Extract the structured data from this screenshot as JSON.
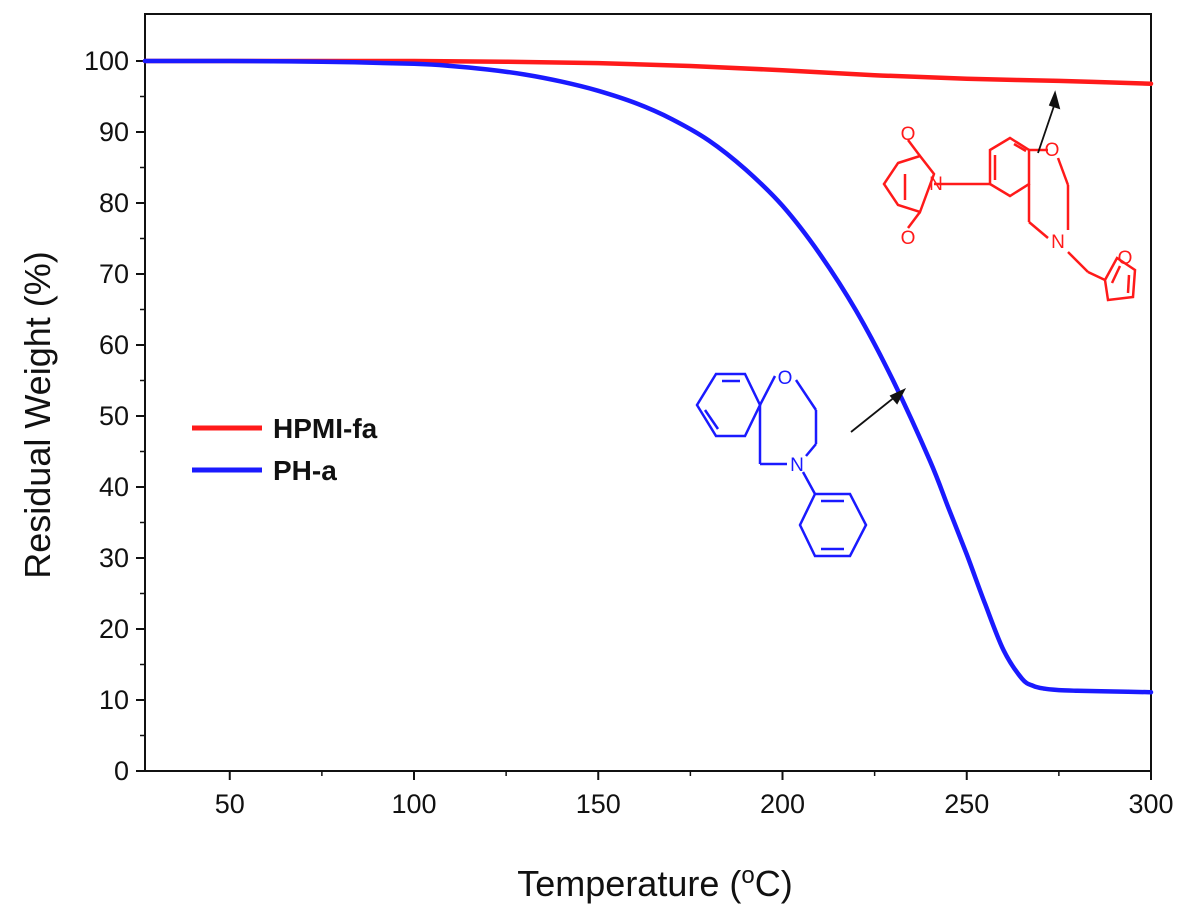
{
  "chart_data": {
    "type": "line",
    "xlabel": "Temperature (",
    "xlabel_sup": "o",
    "xlabel_tail": "C)",
    "ylabel": "Residual Weight (%)",
    "xlim": [
      27,
      300
    ],
    "ylim": [
      0,
      105
    ],
    "x_ticks": [
      50,
      100,
      150,
      200,
      250,
      300
    ],
    "x_minor_step": 25,
    "y_ticks": [
      0,
      10,
      20,
      30,
      40,
      50,
      60,
      70,
      80,
      90,
      100
    ],
    "y_minor_step": 5,
    "grid": false,
    "legend_position": "center-left",
    "series": [
      {
        "name": "HPMI-fa",
        "color": "#ff1a1a",
        "x": [
          27,
          50,
          75,
          100,
          125,
          150,
          175,
          200,
          225,
          250,
          275,
          300
        ],
        "y": [
          100,
          100,
          100,
          100,
          99.9,
          99.7,
          99.3,
          98.7,
          98.0,
          97.5,
          97.2,
          96.8
        ]
      },
      {
        "name": "PH-a",
        "color": "#1a1aff",
        "x": [
          27,
          50,
          75,
          100,
          110,
          120,
          130,
          140,
          150,
          160,
          170,
          180,
          190,
          200,
          210,
          220,
          230,
          240,
          245,
          250,
          255,
          260,
          265,
          268,
          271,
          275,
          280,
          290,
          300
        ],
        "y": [
          100,
          100,
          99.9,
          99.6,
          99.3,
          98.8,
          98.1,
          97.1,
          95.8,
          94.1,
          91.8,
          88.8,
          84.7,
          79.6,
          72.9,
          64.8,
          55.0,
          43.7,
          37.1,
          30.5,
          23.5,
          17.0,
          13.0,
          12.0,
          11.6,
          11.4,
          11.3,
          11.2,
          11.1
        ]
      }
    ],
    "annotations": {
      "hpmi_atoms": [
        "O",
        "N",
        "O",
        "O",
        "N",
        "O"
      ],
      "pha_atoms": [
        "O",
        "N"
      ]
    }
  }
}
